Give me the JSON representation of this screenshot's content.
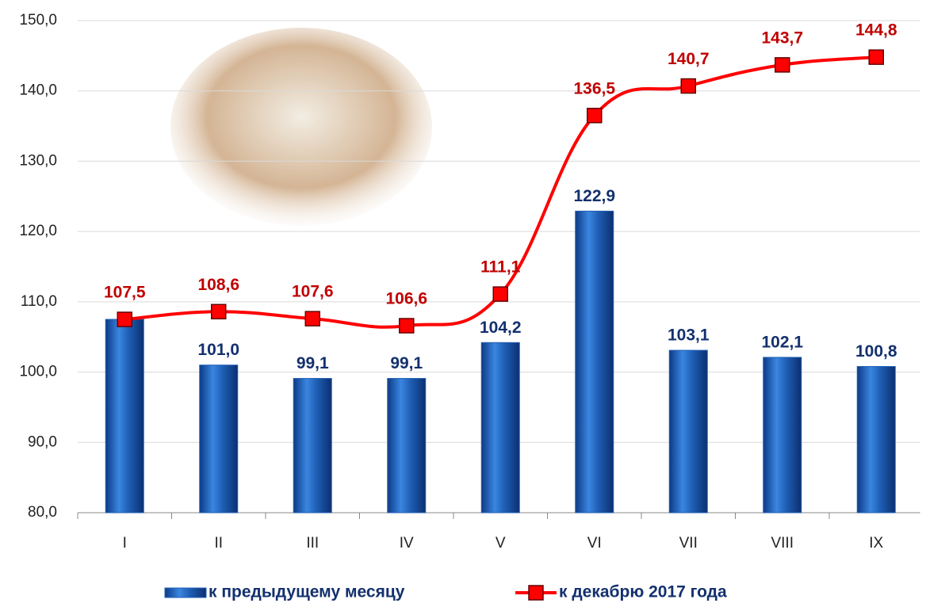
{
  "chart_data": {
    "type": "bar",
    "categories": [
      "I",
      "II",
      "III",
      "IV",
      "V",
      "VI",
      "VII",
      "VIII",
      "IX"
    ],
    "series": [
      {
        "name": "к предыдущему месяцу",
        "type": "bar",
        "color": "#1f5fb5",
        "values": [
          107.5,
          101.0,
          99.1,
          99.1,
          104.2,
          122.9,
          103.1,
          102.1,
          100.8
        ],
        "value_labels": [
          null,
          "101,0",
          "99,1",
          "99,1",
          "104,2",
          "122,9",
          "103,1",
          "102,1",
          "100,8"
        ]
      },
      {
        "name": "к декабрю 2017 года",
        "type": "line",
        "color": "#ff0000",
        "values": [
          107.5,
          108.6,
          107.6,
          106.6,
          111.1,
          136.5,
          140.7,
          143.7,
          144.8
        ],
        "value_labels": [
          "107,5",
          "108,6",
          "107,6",
          "106,6",
          "111,1",
          "136,5",
          "140,7",
          "143,7",
          "144,8"
        ]
      }
    ],
    "ylim": [
      80,
      150
    ],
    "yticks": [
      {
        "value": 80,
        "label": "80,0"
      },
      {
        "value": 90,
        "label": "90,0"
      },
      {
        "value": 100,
        "label": "100,0"
      },
      {
        "value": 110,
        "label": "110,0"
      },
      {
        "value": 120,
        "label": "120,0"
      },
      {
        "value": 130,
        "label": "130,0"
      },
      {
        "value": 140,
        "label": "140,0"
      },
      {
        "value": 150,
        "label": "150,0"
      }
    ],
    "grid": true,
    "legend": "bottom"
  }
}
